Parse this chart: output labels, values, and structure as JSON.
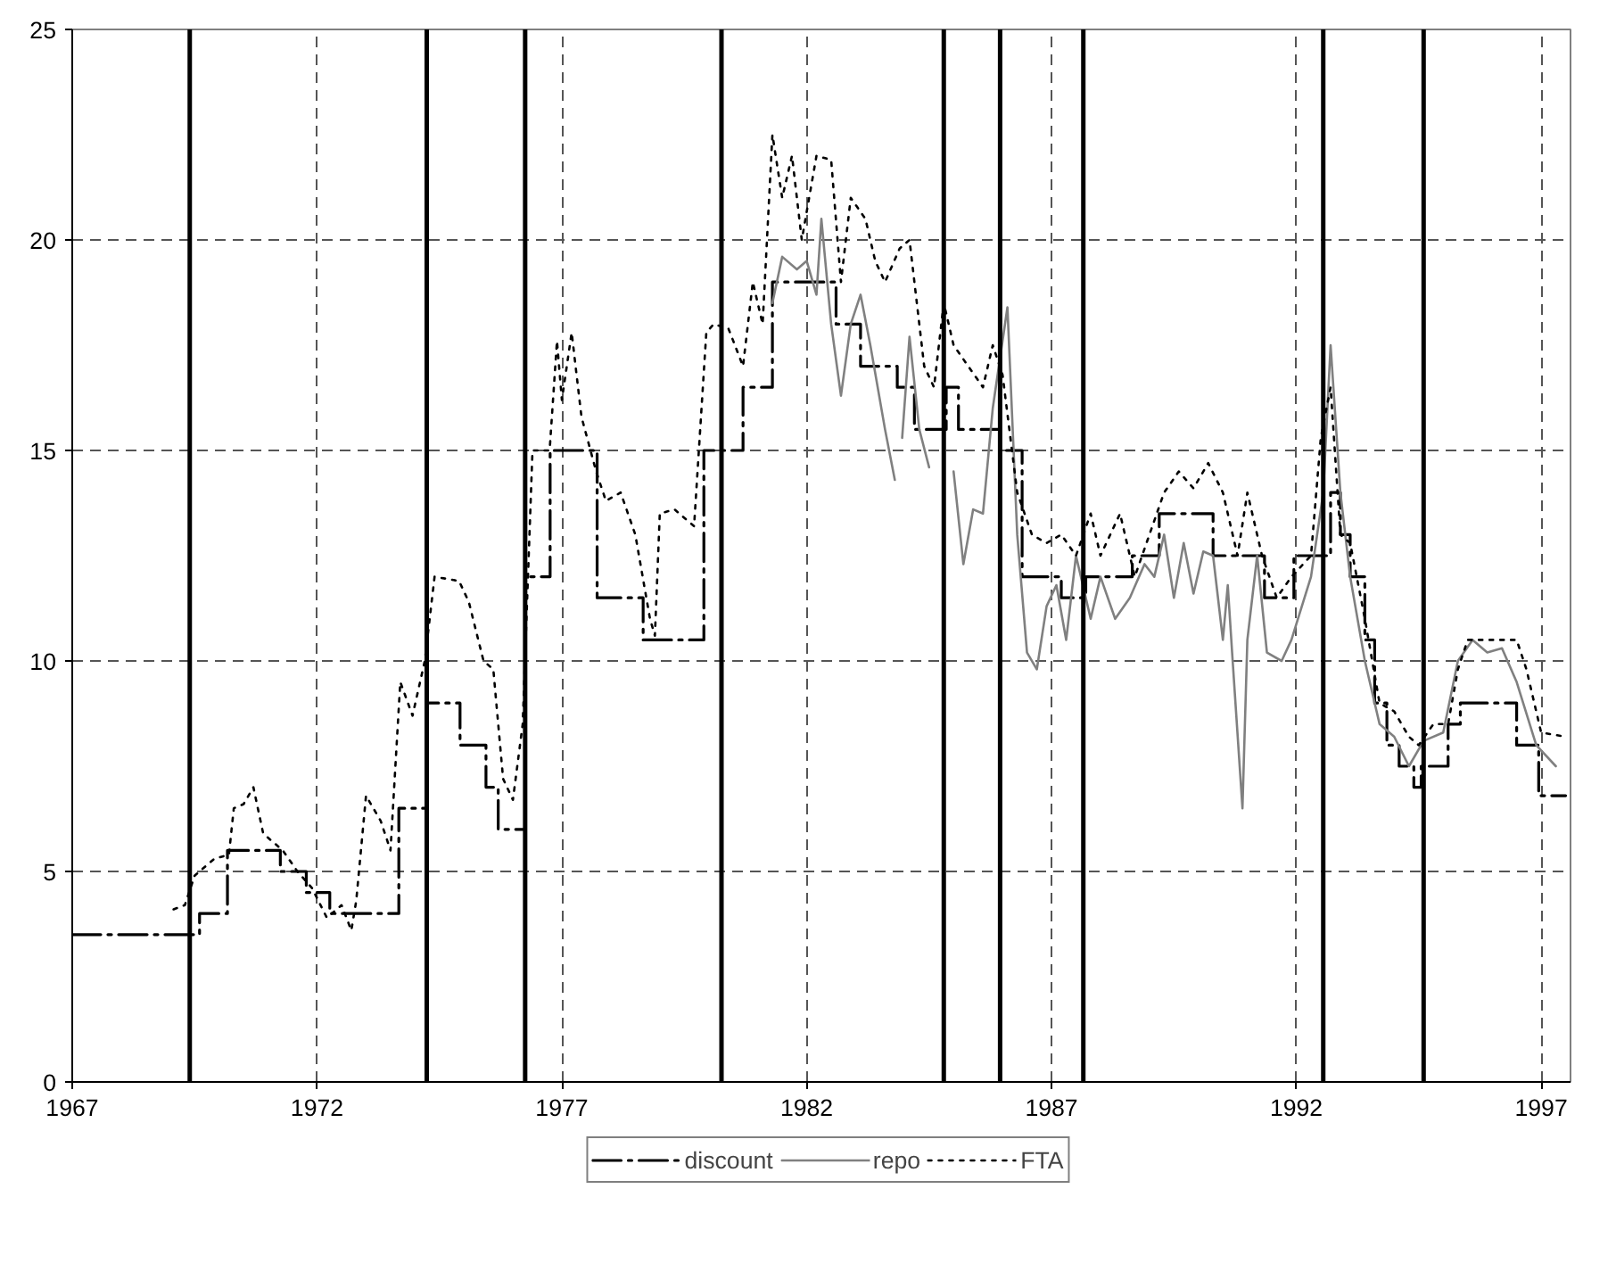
{
  "chart_data": {
    "type": "line",
    "xlim": [
      1967,
      1997.6
    ],
    "ylim": [
      0,
      25
    ],
    "xticks": [
      1967,
      1972,
      1977,
      1982,
      1987,
      1992,
      1997
    ],
    "yticks": [
      0,
      5,
      10,
      15,
      20,
      25
    ],
    "grid": true,
    "legend": "bottom",
    "marker": "none",
    "series": [
      {
        "name": "discount",
        "type": "step",
        "color": "#000000",
        "line_style": "dashdot",
        "x": [
          1967,
          1969.6,
          1970.17,
          1971.25,
          1971.78,
          1972.26,
          1973.67,
          1974.24,
          1974.92,
          1975.45,
          1975.7,
          1976.12,
          1976.25,
          1976.76,
          1977.72,
          1978.66,
          1979.9,
          1980.7,
          1981.3,
          1982.6,
          1983.1,
          1983.85,
          1984.2,
          1984.85,
          1985.1,
          1985.95,
          1986.4,
          1987.2,
          1987.7,
          1988.65,
          1989.2,
          1990.3,
          1991.35,
          1991.95,
          1992.7,
          1992.9,
          1993.1,
          1993.4,
          1993.6,
          1993.85,
          1994.1,
          1994.4,
          1994.55,
          1995.1,
          1995.35,
          1996.5,
          1996.95,
          1997.5
        ],
        "values": [
          3.5,
          4.0,
          5.5,
          5.0,
          4.5,
          4.0,
          6.5,
          9.0,
          8.0,
          7.0,
          6.0,
          6.0,
          12.0,
          15.0,
          11.5,
          10.5,
          15.0,
          16.5,
          19.0,
          18.0,
          17.0,
          16.5,
          15.5,
          16.5,
          15.5,
          15.0,
          12.0,
          11.5,
          12.0,
          12.5,
          13.5,
          12.5,
          11.5,
          12.5,
          14.0,
          13.0,
          12.0,
          10.5,
          9.0,
          8.0,
          7.5,
          7.0,
          7.5,
          8.5,
          9.0,
          8.0,
          6.8,
          6.8
        ]
      },
      {
        "name": "repo",
        "color": "#808080",
        "line_style": "solid",
        "x": [
          1981.3,
          1981.5,
          1981.8,
          1982.0,
          1982.2,
          1982.3,
          1982.5,
          1982.7,
          1982.9,
          1983.1,
          1983.3,
          1983.6,
          1983.8,
          1983.88,
          1983.95,
          1984.1,
          1984.3,
          1984.5,
          1984.75,
          1985.0,
          1985.2,
          1985.4,
          1985.6,
          1985.8,
          1986.1,
          1986.3,
          1986.5,
          1986.7,
          1986.9,
          1987.1,
          1987.3,
          1987.5,
          1987.8,
          1988.0,
          1988.3,
          1988.6,
          1988.9,
          1989.1,
          1989.3,
          1989.5,
          1989.7,
          1989.9,
          1990.1,
          1990.3,
          1990.5,
          1990.6,
          1990.7,
          1990.9,
          1991.0,
          1991.2,
          1991.4,
          1991.7,
          1991.9,
          1992.3,
          1992.55,
          1992.7,
          1992.9,
          1993.1,
          1993.4,
          1993.7,
          1994.0,
          1994.3,
          1994.6,
          1995.0,
          1995.3,
          1995.6,
          1995.9,
          1996.2,
          1996.5,
          1996.9,
          1997.3
        ],
        "values": [
          18.5,
          19.6,
          19.3,
          19.5,
          18.7,
          20.5,
          18.0,
          16.3,
          18.0,
          18.7,
          17.5,
          15.5,
          14.3,
          null,
          15.3,
          17.7,
          15.5,
          14.6,
          null,
          14.5,
          12.3,
          13.6,
          13.5,
          16.0,
          18.4,
          13.0,
          10.2,
          9.8,
          11.3,
          11.8,
          10.5,
          12.5,
          11.0,
          12.0,
          11.0,
          11.5,
          12.3,
          12.0,
          13.0,
          11.5,
          12.8,
          11.6,
          12.6,
          12.5,
          10.5,
          11.8,
          10.0,
          6.5,
          10.5,
          12.5,
          10.2,
          10.0,
          10.5,
          12.0,
          14.0,
          17.5,
          14.0,
          12.0,
          10.0,
          8.5,
          8.2,
          7.5,
          8.1,
          8.3,
          10.0,
          10.5,
          10.2,
          10.3,
          9.5,
          8.0,
          7.5
        ]
      },
      {
        "name": "FTA",
        "color": "#000000",
        "line_style": "dotted",
        "x": [
          1969.07,
          1969.3,
          1969.5,
          1969.9,
          1970.2,
          1970.3,
          1970.5,
          1970.7,
          1970.9,
          1971.3,
          1971.6,
          1971.9,
          1972.2,
          1972.5,
          1972.7,
          1972.8,
          1973.0,
          1973.3,
          1973.5,
          1973.7,
          1973.95,
          1974.2,
          1974.4,
          1974.9,
          1975.1,
          1975.4,
          1975.6,
          1975.8,
          1976.0,
          1976.2,
          1976.4,
          1976.75,
          1976.9,
          1977.0,
          1977.2,
          1977.4,
          1977.7,
          1977.9,
          1978.2,
          1978.5,
          1978.8,
          1978.9,
          1979.0,
          1979.3,
          1979.7,
          1979.95,
          1980.1,
          1980.4,
          1980.7,
          1980.9,
          1981.1,
          1981.3,
          1981.5,
          1981.7,
          1981.9,
          1982.2,
          1982.5,
          1982.7,
          1982.9,
          1983.2,
          1983.4,
          1983.6,
          1983.9,
          1984.1,
          1984.4,
          1984.6,
          1984.8,
          1985.0,
          1985.3,
          1985.6,
          1985.8,
          1986.0,
          1986.3,
          1986.6,
          1986.9,
          1987.2,
          1987.5,
          1987.8,
          1988.0,
          1988.4,
          1988.7,
          1989.0,
          1989.3,
          1989.6,
          1989.9,
          1990.2,
          1990.5,
          1990.8,
          1991.0,
          1991.3,
          1991.6,
          1991.9,
          1992.3,
          1992.5,
          1992.7,
          1992.9,
          1993.1,
          1993.4,
          1993.7,
          1994.0,
          1994.3,
          1994.5,
          1994.8,
          1995.1,
          1995.3,
          1995.5,
          1996.5,
          1996.7,
          1997.0,
          1997.5
        ],
        "values": [
          4.1,
          4.2,
          4.9,
          5.3,
          5.4,
          6.5,
          6.6,
          7.0,
          5.9,
          5.5,
          5.0,
          4.6,
          3.9,
          4.2,
          3.6,
          4.3,
          6.8,
          6.2,
          5.5,
          9.5,
          8.7,
          10.0,
          12.0,
          11.9,
          11.4,
          10.0,
          9.8,
          7.2,
          6.7,
          8.5,
          15.0,
          15.0,
          17.6,
          16.2,
          17.8,
          15.8,
          14.5,
          13.8,
          14.0,
          13.0,
          11.0,
          10.6,
          13.5,
          13.6,
          13.2,
          17.8,
          18.0,
          17.9,
          17.0,
          19.0,
          18.0,
          22.5,
          21.0,
          22.0,
          20.0,
          22.0,
          21.9,
          19.0,
          21.0,
          20.5,
          19.5,
          19.0,
          19.8,
          20.0,
          17.0,
          16.5,
          18.5,
          17.5,
          17.0,
          16.5,
          17.5,
          16.8,
          14.0,
          13.0,
          12.8,
          13.0,
          12.5,
          13.5,
          12.5,
          13.5,
          12.0,
          13.0,
          14.0,
          14.5,
          14.1,
          14.7,
          14.0,
          12.5,
          14.0,
          12.5,
          11.5,
          12.0,
          12.5,
          15.3,
          16.5,
          13.0,
          12.8,
          11.0,
          9.0,
          8.8,
          8.2,
          8.0,
          8.5,
          8.5,
          9.8,
          10.5,
          10.5,
          9.8,
          8.3,
          8.2
        ]
      }
    ],
    "ref_lines": [
      {
        "axis": "x",
        "value": 1969.4,
        "color": "#000000"
      },
      {
        "axis": "x",
        "value": 1974.24,
        "color": "#000000"
      },
      {
        "axis": "x",
        "value": 1976.25,
        "color": "#000000"
      },
      {
        "axis": "x",
        "value": 1980.26,
        "color": "#000000"
      },
      {
        "axis": "x",
        "value": 1984.8,
        "color": "#000000"
      },
      {
        "axis": "x",
        "value": 1985.95,
        "color": "#000000"
      },
      {
        "axis": "x",
        "value": 1987.65,
        "color": "#000000"
      },
      {
        "axis": "x",
        "value": 1992.55,
        "color": "#000000"
      },
      {
        "axis": "x",
        "value": 1994.6,
        "color": "#000000"
      }
    ]
  }
}
